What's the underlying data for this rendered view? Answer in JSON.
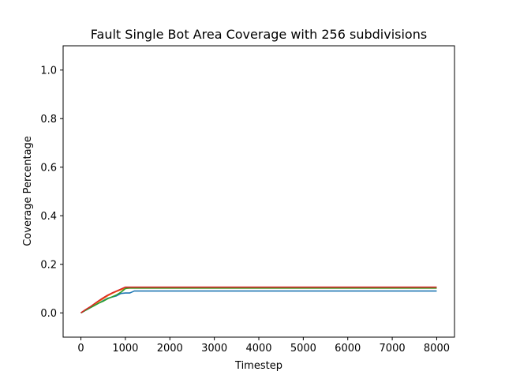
{
  "chart_data": {
    "type": "line",
    "title": "Fault Single Bot Area Coverage with 256 subdivisions",
    "xlabel": "Timestep",
    "ylabel": "Coverage Percentage",
    "xlim": [
      -400,
      8400
    ],
    "ylim": [
      -0.1,
      1.1
    ],
    "xticks": [
      0,
      1000,
      2000,
      3000,
      4000,
      5000,
      6000,
      7000,
      8000
    ],
    "xtick_labels": [
      "0",
      "1000",
      "2000",
      "3000",
      "4000",
      "5000",
      "6000",
      "7000",
      "8000"
    ],
    "yticks": [
      0.0,
      0.2,
      0.4,
      0.6,
      0.8,
      1.0
    ],
    "ytick_labels": [
      "0.0",
      "0.2",
      "0.4",
      "0.6",
      "0.8",
      "1.0"
    ],
    "grid": false,
    "legend": "none",
    "series": [
      {
        "color": "#1f77b4",
        "x": [
          0,
          100,
          200,
          300,
          400,
          500,
          600,
          700,
          800,
          900,
          1000,
          1100,
          1150,
          1200,
          8000
        ],
        "y": [
          0.0,
          0.01,
          0.02,
          0.03,
          0.04,
          0.05,
          0.06,
          0.065,
          0.07,
          0.08,
          0.082,
          0.082,
          0.086,
          0.09,
          0.09
        ]
      },
      {
        "color": "#ff7f0e",
        "x": [
          0,
          100,
          200,
          300,
          400,
          500,
          600,
          700,
          800,
          900,
          1000,
          1100,
          8000
        ],
        "y": [
          0.0,
          0.012,
          0.022,
          0.035,
          0.047,
          0.058,
          0.07,
          0.08,
          0.088,
          0.095,
          0.1,
          0.102,
          0.102
        ]
      },
      {
        "color": "#2ca02c",
        "x": [
          0,
          100,
          200,
          300,
          400,
          500,
          600,
          700,
          800,
          900,
          1000,
          1050,
          8000
        ],
        "y": [
          0.0,
          0.01,
          0.02,
          0.03,
          0.04,
          0.048,
          0.058,
          0.066,
          0.074,
          0.085,
          0.1,
          0.102,
          0.102
        ]
      },
      {
        "color": "#d62728",
        "x": [
          0,
          100,
          200,
          300,
          400,
          500,
          600,
          700,
          800,
          900,
          1000,
          8000
        ],
        "y": [
          0.0,
          0.013,
          0.024,
          0.037,
          0.05,
          0.062,
          0.073,
          0.082,
          0.09,
          0.098,
          0.106,
          0.106
        ]
      }
    ]
  }
}
